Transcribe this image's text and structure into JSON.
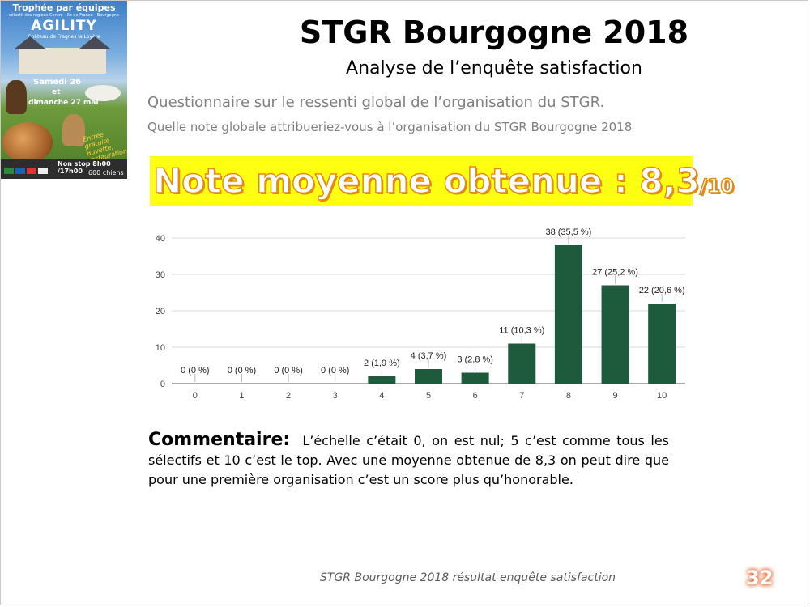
{
  "poster": {
    "line1": "Trophée par équipes",
    "line2": "sélectif des régions Centre - Ile de France - Bourgogne",
    "line3": "AGILITY",
    "line4": "Château de Fragnes la Loyère",
    "date1": "Samedi 26",
    "date2": "et",
    "date3": "dimanche 27 mai",
    "script": "Entrée gratuite Buvette, restauration",
    "nonstop": "Non stop 8h00 /17h00",
    "chiens": "600 chiens"
  },
  "title": "STGR Bourgogne 2018",
  "subtitle": "Analyse de l’enquête satisfaction",
  "question1": "Questionnaire  sur le ressenti  global  de l’organisation du STGR.",
  "question2": "Quelle note globale attribueriez-vous  à l’organisation du STGR Bourgogne 2018",
  "banner": {
    "main": "Note moyenne obtenue : 8,3",
    "small": "/10"
  },
  "chart_data": {
    "type": "bar",
    "categories": [
      "0",
      "1",
      "2",
      "3",
      "4",
      "5",
      "6",
      "7",
      "8",
      "9",
      "10"
    ],
    "values": [
      0,
      0,
      0,
      0,
      2,
      4,
      3,
      11,
      38,
      27,
      22
    ],
    "labels": [
      "0 (0 %)",
      "0 (0 %)",
      "0 (0 %)",
      "0 (0 %)",
      "2 (1,9 %)",
      "4 (3,7 %)",
      "3 (2,8 %)",
      "11 (10,3 %)",
      "38 (35,5 %)",
      "27 (25,2 %)",
      "22 (20,6 %)"
    ],
    "yticks": [
      0,
      10,
      20,
      30,
      40
    ],
    "ylim": [
      0,
      40
    ],
    "grid": true,
    "bar_color": "#1e5b3c"
  },
  "comment": {
    "label": "Commentaire:",
    "text": "L’échelle c’était  0, on est nul; 5 c’est comme tous les sélectifs et 10 c’est le top. Avec une moyenne obtenue de 8,3 on peut dire que pour une première organisation c’est un score plus qu’honorable."
  },
  "footer": "STGR Bourgogne 2018 résultat enquête satisfaction",
  "page_number": "32"
}
